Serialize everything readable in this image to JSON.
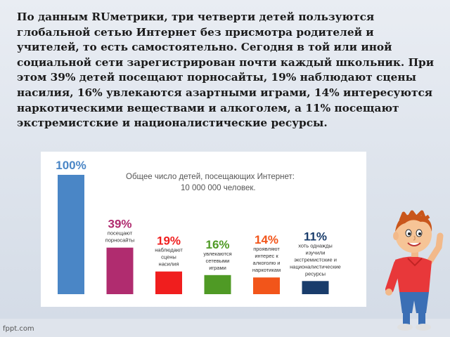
{
  "intro_text": "По данным RUметрики, три четверти детей пользуются глобальной сетью Интернет без присмотра родителей и учителей, то есть самостоятельно. Сегодня в той или иной социальной сети зарегистрирован почти каждый школьник. При этом 39% детей посещают порносайты, 19% наблюдают сцены насилия, 16% увлекаются азартными играми, 14% интересуются наркотическими веществами и алкоголем, а 11% посещают экстремистские и националистические ресурсы.",
  "chart_data": {
    "type": "bar",
    "title_line1": "Общее число детей, посещающих Интернет:",
    "title_line2": "10 000 000 человек.",
    "ylim": [
      0,
      100
    ],
    "grid": false,
    "bars": [
      {
        "value": 100,
        "label": "100%",
        "desc": [],
        "color": "#4a86c6"
      },
      {
        "value": 39,
        "label": "39%",
        "desc": [
          "посещают",
          "порносайты"
        ],
        "color": "#b02c6f"
      },
      {
        "value": 19,
        "label": "19%",
        "desc": [
          "наблюдают",
          "сцены",
          "насилия"
        ],
        "color": "#f01e1e"
      },
      {
        "value": 16,
        "label": "16%",
        "desc": [
          "увлекаются",
          "сетевыми",
          "играми"
        ],
        "color": "#4f9a25"
      },
      {
        "value": 14,
        "label": "14%",
        "desc": [
          "проявляют",
          "интерес к",
          "алкоголю и",
          "наркотикам"
        ],
        "color": "#f2551a"
      },
      {
        "value": 11,
        "label": "11%",
        "desc": [
          "хоть однажды",
          "изучили",
          "экстремистские и",
          "националистические",
          "ресурсы"
        ],
        "color": "#193c6b"
      }
    ]
  },
  "footer": {
    "logo": "fppt.com"
  },
  "colors": {
    "background": "#dfe5ee",
    "card": "#ffffff",
    "text": "#1b1b1b"
  }
}
